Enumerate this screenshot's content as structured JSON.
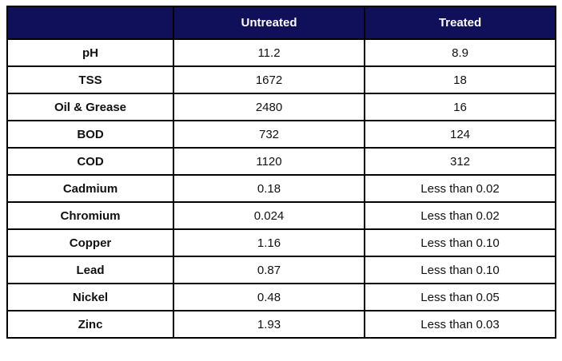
{
  "styles": {
    "header_background": "#10105a",
    "header_text_color": "#ffffff",
    "border_color": "#000000",
    "body_text_color": "#111111"
  },
  "chart_data": {
    "type": "table",
    "title": "",
    "columns": [
      "",
      "Untreated",
      "Treated"
    ],
    "rows": [
      {
        "label": "pH",
        "untreated": "11.2",
        "treated": "8.9"
      },
      {
        "label": "TSS",
        "untreated": "1672",
        "treated": "18"
      },
      {
        "label": "Oil & Grease",
        "untreated": "2480",
        "treated": "16"
      },
      {
        "label": "BOD",
        "untreated": "732",
        "treated": "124"
      },
      {
        "label": "COD",
        "untreated": "1120",
        "treated": "312"
      },
      {
        "label": "Cadmium",
        "untreated": "0.18",
        "treated": "Less than 0.02"
      },
      {
        "label": "Chromium",
        "untreated": "0.024",
        "treated": "Less than 0.02"
      },
      {
        "label": "Copper",
        "untreated": "1.16",
        "treated": "Less than 0.10"
      },
      {
        "label": "Lead",
        "untreated": "0.87",
        "treated": "Less than 0.10"
      },
      {
        "label": "Nickel",
        "untreated": "0.48",
        "treated": "Less than 0.05"
      },
      {
        "label": "Zinc",
        "untreated": "1.93",
        "treated": "Less than 0.03"
      }
    ]
  }
}
